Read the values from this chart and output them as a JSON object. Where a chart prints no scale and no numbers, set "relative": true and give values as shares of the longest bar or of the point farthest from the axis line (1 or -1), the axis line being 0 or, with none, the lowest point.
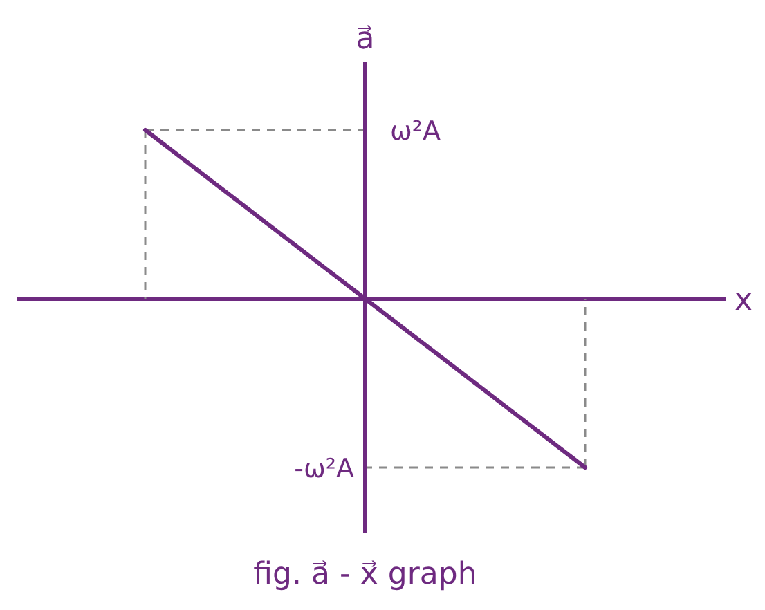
{
  "chart_data": {
    "type": "line",
    "relative": true,
    "xlabel": "x",
    "ylabel": "a⃗",
    "categories": [
      null,
      null,
      null
    ],
    "series": [
      {
        "color": "#6e2a80",
        "values": [
          1,
          0,
          -1
        ]
      }
    ],
    "ref_lines": [
      {
        "axis": "y",
        "value": 0,
        "line_style": "solid",
        "color": "#6e2a80"
      },
      {
        "axis": "y",
        "value": 1,
        "label": "ω²A",
        "line_style": "dashed",
        "color": "#8a8a8a"
      },
      {
        "axis": "y",
        "value": -1,
        "label": "-ω²A",
        "line_style": "dashed",
        "color": "#8a8a8a"
      }
    ],
    "annotations": [
      "fig. a⃗ - x⃗ graph"
    ],
    "marker": "none",
    "line_style": "solid"
  }
}
